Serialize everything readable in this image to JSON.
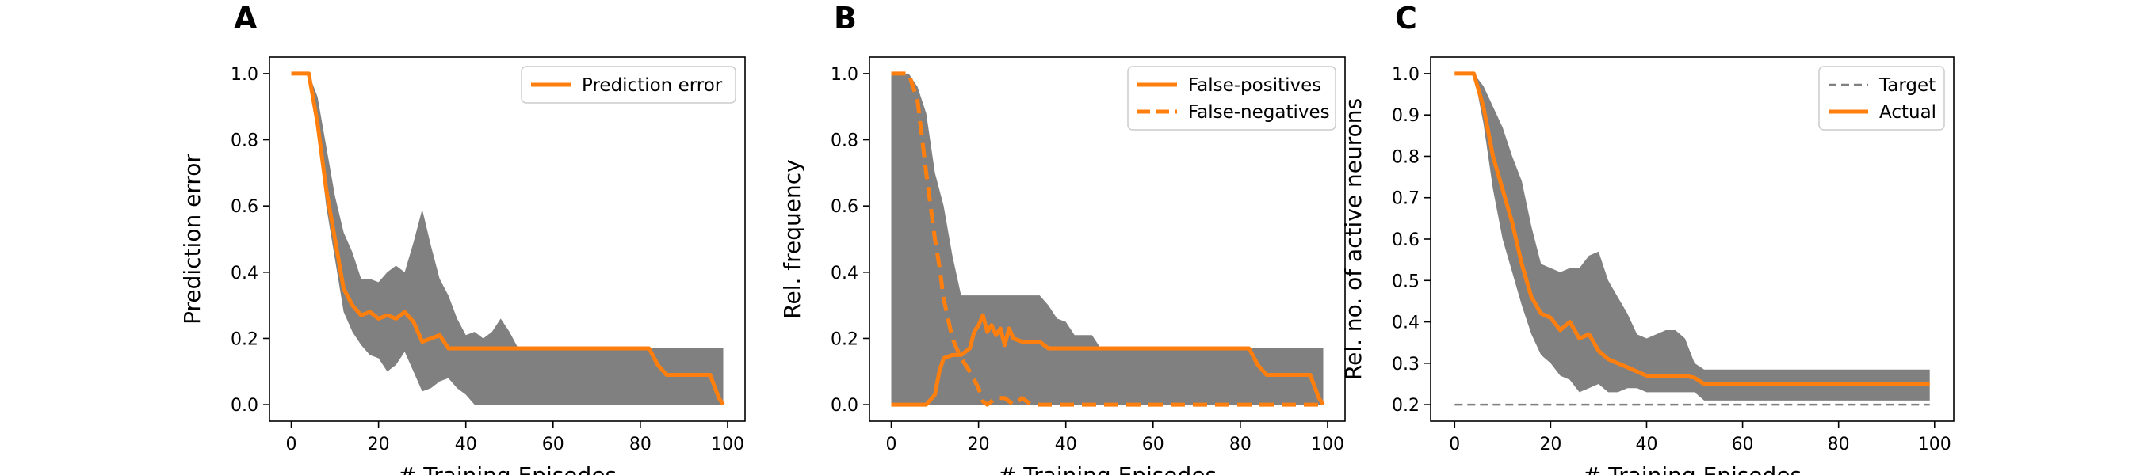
{
  "chart_data": [
    {
      "panel_label": "A",
      "type": "line",
      "xlabel": "# Training Episodes",
      "ylabel": "Prediction error",
      "xlim": [
        -5,
        104
      ],
      "ylim": [
        -0.05,
        1.05
      ],
      "xticks": [
        0,
        20,
        40,
        60,
        80,
        100
      ],
      "yticks": [
        0.0,
        0.2,
        0.4,
        0.6,
        0.8,
        1.0
      ],
      "ytick_labels": [
        "0.0",
        "0.2",
        "0.4",
        "0.6",
        "0.8",
        "1.0"
      ],
      "legend_position": "top-right",
      "band_color": "#808080",
      "series": [
        {
          "name": "Prediction error",
          "style": "solid",
          "color": "#ff7f0e",
          "x": [
            0,
            4,
            6,
            8,
            10,
            12,
            14,
            16,
            18,
            20,
            22,
            24,
            26,
            28,
            30,
            32,
            34,
            36,
            38,
            40,
            50,
            60,
            70,
            80,
            82,
            84,
            86,
            88,
            90,
            92,
            94,
            96,
            98,
            99
          ],
          "y": [
            1.0,
            1.0,
            0.85,
            0.65,
            0.5,
            0.35,
            0.3,
            0.27,
            0.28,
            0.26,
            0.27,
            0.26,
            0.28,
            0.25,
            0.19,
            0.2,
            0.21,
            0.17,
            0.17,
            0.17,
            0.17,
            0.17,
            0.17,
            0.17,
            0.17,
            0.12,
            0.09,
            0.09,
            0.09,
            0.09,
            0.09,
            0.09,
            0.02,
            0.0
          ]
        }
      ],
      "band": {
        "x": [
          0,
          4,
          6,
          8,
          10,
          12,
          14,
          16,
          18,
          20,
          22,
          24,
          26,
          28,
          30,
          32,
          34,
          36,
          38,
          40,
          42,
          44,
          46,
          48,
          50,
          52,
          60,
          70,
          80,
          82,
          84,
          90,
          96,
          99
        ],
        "upper": [
          1.0,
          1.0,
          0.93,
          0.78,
          0.63,
          0.52,
          0.46,
          0.38,
          0.38,
          0.37,
          0.4,
          0.42,
          0.4,
          0.49,
          0.59,
          0.48,
          0.38,
          0.33,
          0.26,
          0.21,
          0.22,
          0.2,
          0.22,
          0.26,
          0.22,
          0.17,
          0.17,
          0.17,
          0.17,
          0.17,
          0.17,
          0.17,
          0.17,
          0.17
        ],
        "lower": [
          1.0,
          1.0,
          0.82,
          0.6,
          0.44,
          0.28,
          0.22,
          0.18,
          0.15,
          0.14,
          0.1,
          0.12,
          0.16,
          0.1,
          0.04,
          0.05,
          0.07,
          0.08,
          0.05,
          0.03,
          0.0,
          0.0,
          0.0,
          0.0,
          0.0,
          0.0,
          0.0,
          0.0,
          0.0,
          0.0,
          0.0,
          0.0,
          0.0,
          0.0
        ]
      }
    },
    {
      "panel_label": "B",
      "type": "line",
      "xlabel": "# Training Episodes",
      "ylabel": "Rel. frequency",
      "xlim": [
        -5,
        104
      ],
      "ylim": [
        -0.05,
        1.05
      ],
      "xticks": [
        0,
        20,
        40,
        60,
        80,
        100
      ],
      "yticks": [
        0.0,
        0.2,
        0.4,
        0.6,
        0.8,
        1.0
      ],
      "ytick_labels": [
        "0.0",
        "0.2",
        "0.4",
        "0.6",
        "0.8",
        "1.0"
      ],
      "legend_position": "top-right",
      "band_color": "#808080",
      "series": [
        {
          "name": "False-positives",
          "style": "solid",
          "color": "#ff7f0e",
          "x": [
            0,
            5,
            8,
            10,
            11,
            12,
            14,
            16,
            18,
            19,
            20,
            21,
            22,
            23,
            24,
            25,
            26,
            27,
            28,
            30,
            32,
            34,
            36,
            38,
            40,
            50,
            60,
            70,
            80,
            82,
            84,
            86,
            90,
            94,
            96,
            98,
            99
          ],
          "y": [
            0.0,
            0.0,
            0.0,
            0.03,
            0.1,
            0.14,
            0.15,
            0.15,
            0.17,
            0.22,
            0.24,
            0.27,
            0.22,
            0.24,
            0.21,
            0.23,
            0.18,
            0.23,
            0.2,
            0.19,
            0.19,
            0.19,
            0.17,
            0.17,
            0.17,
            0.17,
            0.17,
            0.17,
            0.17,
            0.17,
            0.12,
            0.09,
            0.09,
            0.09,
            0.09,
            0.02,
            0.0
          ]
        },
        {
          "name": "False-negatives",
          "style": "dashed",
          "color": "#ff7f0e",
          "x": [
            0,
            2,
            4,
            6,
            8,
            10,
            11,
            12,
            14,
            16,
            18,
            20,
            21,
            22,
            24,
            26,
            28,
            30,
            32,
            40,
            60,
            80,
            99
          ],
          "y": [
            1.0,
            1.0,
            1.0,
            0.92,
            0.7,
            0.5,
            0.42,
            0.32,
            0.2,
            0.14,
            0.1,
            0.05,
            0.01,
            0.0,
            0.02,
            0.02,
            0.0,
            0.02,
            0.0,
            0.0,
            0.0,
            0.0,
            0.0
          ]
        }
      ],
      "band": {
        "x": [
          0,
          4,
          6,
          8,
          10,
          12,
          14,
          16,
          18,
          20,
          24,
          28,
          32,
          34,
          36,
          38,
          40,
          42,
          44,
          46,
          48,
          50,
          60,
          80,
          99
        ],
        "upper": [
          1.0,
          1.0,
          0.96,
          0.88,
          0.7,
          0.6,
          0.45,
          0.33,
          0.33,
          0.33,
          0.33,
          0.33,
          0.33,
          0.33,
          0.3,
          0.26,
          0.25,
          0.21,
          0.21,
          0.21,
          0.17,
          0.17,
          0.17,
          0.17,
          0.17
        ],
        "lower": [
          0.0,
          0.0,
          0.0,
          0.0,
          0.0,
          0.0,
          0.0,
          0.0,
          0.0,
          0.0,
          0.0,
          0.0,
          0.0,
          0.0,
          0.0,
          0.0,
          0.0,
          0.0,
          0.0,
          0.0,
          0.0,
          0.0,
          0.0,
          0.0,
          0.0
        ]
      }
    },
    {
      "panel_label": "C",
      "type": "line",
      "xlabel": "# Training Episodes",
      "ylabel": "Rel. no. of active neurons",
      "xlim": [
        -5,
        104
      ],
      "ylim": [
        0.16,
        1.04
      ],
      "xticks": [
        0,
        20,
        40,
        60,
        80,
        100
      ],
      "yticks": [
        0.2,
        0.3,
        0.4,
        0.5,
        0.6,
        0.7,
        0.8,
        0.9,
        1.0
      ],
      "ytick_labels": [
        "0.2",
        "0.3",
        "0.4",
        "0.5",
        "0.6",
        "0.7",
        "0.8",
        "0.9",
        "1.0"
      ],
      "legend_position": "top-right",
      "band_color": "#808080",
      "series": [
        {
          "name": "Target",
          "style": "dashed",
          "color": "#808080",
          "x": [
            0,
            99
          ],
          "y": [
            0.2,
            0.2
          ]
        },
        {
          "name": "Actual",
          "style": "solid",
          "color": "#ff7f0e",
          "x": [
            0,
            4,
            6,
            8,
            10,
            12,
            14,
            16,
            18,
            20,
            22,
            24,
            26,
            28,
            30,
            32,
            34,
            36,
            38,
            40,
            42,
            44,
            46,
            48,
            50,
            52,
            54,
            60,
            70,
            80,
            90,
            99
          ],
          "y": [
            1.0,
            1.0,
            0.92,
            0.8,
            0.72,
            0.64,
            0.54,
            0.46,
            0.42,
            0.41,
            0.38,
            0.4,
            0.36,
            0.37,
            0.33,
            0.31,
            0.3,
            0.29,
            0.28,
            0.27,
            0.27,
            0.27,
            0.27,
            0.27,
            0.265,
            0.25,
            0.25,
            0.25,
            0.25,
            0.25,
            0.25,
            0.25
          ]
        }
      ],
      "band": {
        "x": [
          0,
          4,
          6,
          8,
          10,
          12,
          14,
          16,
          18,
          20,
          22,
          24,
          26,
          28,
          30,
          32,
          34,
          36,
          38,
          40,
          42,
          44,
          46,
          48,
          50,
          52,
          54,
          60,
          70,
          80,
          90,
          99
        ],
        "upper": [
          1.0,
          1.0,
          0.97,
          0.92,
          0.87,
          0.8,
          0.74,
          0.63,
          0.54,
          0.53,
          0.52,
          0.53,
          0.53,
          0.56,
          0.57,
          0.5,
          0.46,
          0.42,
          0.37,
          0.36,
          0.37,
          0.38,
          0.38,
          0.36,
          0.3,
          0.285,
          0.285,
          0.285,
          0.285,
          0.285,
          0.285,
          0.285
        ],
        "lower": [
          1.0,
          1.0,
          0.88,
          0.72,
          0.6,
          0.52,
          0.44,
          0.37,
          0.32,
          0.3,
          0.27,
          0.26,
          0.23,
          0.24,
          0.25,
          0.23,
          0.23,
          0.24,
          0.24,
          0.23,
          0.23,
          0.23,
          0.23,
          0.23,
          0.23,
          0.21,
          0.21,
          0.21,
          0.21,
          0.21,
          0.21,
          0.21
        ]
      }
    }
  ]
}
